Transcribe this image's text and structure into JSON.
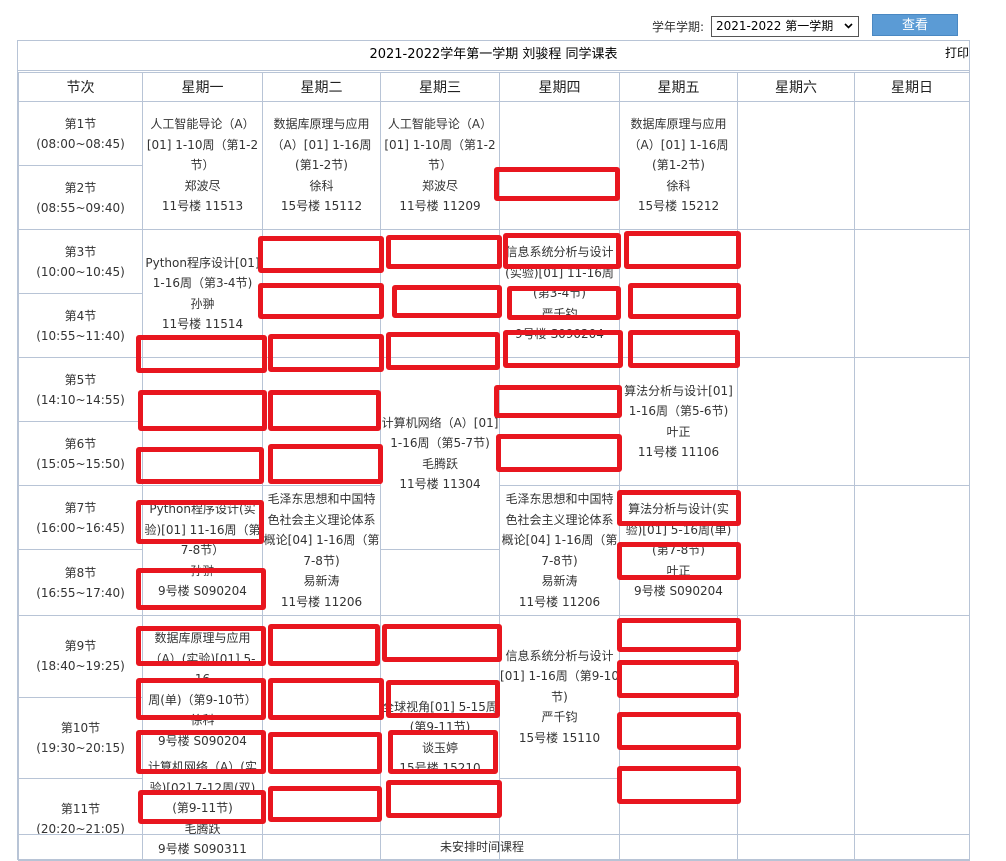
{
  "toolbar": {
    "term_label": "学年学期:",
    "term_value": "2021-2022 第一学期",
    "query_label": "查看"
  },
  "title": "2021-2022学年第一学期 刘骏程 同学课表",
  "print_label": "打印",
  "headers": [
    "节次",
    "星期一",
    "星期二",
    "星期三",
    "星期四",
    "星期五",
    "星期六",
    "星期日"
  ],
  "periods": [
    {
      "name": "第1节",
      "time": "(08:00~08:45)"
    },
    {
      "name": "第2节",
      "time": "(08:55~09:40)"
    },
    {
      "name": "第3节",
      "time": "(10:00~10:45)"
    },
    {
      "name": "第4节",
      "time": "(10:55~11:40)"
    },
    {
      "name": "第5节",
      "time": "(14:10~14:55)"
    },
    {
      "name": "第6节",
      "time": "(15:05~15:50)"
    },
    {
      "name": "第7节",
      "time": "(16:00~16:45)"
    },
    {
      "name": "第8节",
      "time": "(16:55~17:40)"
    },
    {
      "name": "第9节",
      "time": "(18:40~19:25)"
    },
    {
      "name": "第10节",
      "time": "(19:30~20:15)"
    },
    {
      "name": "第11节",
      "time": "(20:20~21:05)"
    }
  ],
  "courses": {
    "mon_1": {
      "lines": [
        "人工智能导论（A）",
        "[01] 1-10周（第1-2",
        "节）",
        "郑波尽",
        "11号楼 11513"
      ]
    },
    "tue_1": {
      "lines": [
        "数据库原理与应用",
        "（A）[01] 1-16周",
        "(第1-2节)",
        "徐科",
        "15号楼 15112"
      ]
    },
    "wed_1": {
      "lines": [
        "人工智能导论（A）",
        "[01] 1-10周（第1-2",
        "节）",
        "郑波尽",
        "11号楼 11209"
      ]
    },
    "fri_1": {
      "lines": [
        "数据库原理与应用",
        "（A）[01] 1-16周",
        "(第1-2节)",
        "徐科",
        "15号楼 15212"
      ]
    },
    "mon_3": {
      "lines": [
        "Python程序设计[01]",
        "1-16周（第3-4节)",
        "孙翀",
        "11号楼 11514"
      ]
    },
    "thu_3": {
      "lines": [
        "信息系统分析与设计",
        "(实验)[01] 11-16周",
        "(第3-4节)",
        "严千钧",
        "9号楼 S090204"
      ]
    },
    "wed_5": {
      "lines": [
        "计算机网络（A）[01]",
        "1-16周（第5-7节)",
        "毛腾跃",
        "11号楼 11304"
      ]
    },
    "fri_5": {
      "lines": [
        "算法分析与设计[01]",
        "1-16周（第5-6节)",
        "叶正",
        "11号楼 11106"
      ]
    },
    "mon_7": {
      "lines": [
        "Python程序设计(实",
        "验)[01] 11-16周（第",
        "7-8节）",
        "孙翀",
        "9号楼 S090204"
      ]
    },
    "tue_7": {
      "lines": [
        "毛泽东思想和中国特",
        "色社会主义理论体系",
        "概论[04] 1-16周（第",
        "7-8节)",
        "易新涛",
        "11号楼 11206"
      ]
    },
    "thu_7": {
      "lines": [
        "毛泽东思想和中国特",
        "色社会主义理论体系",
        "概论[04] 1-16周（第",
        "7-8节)",
        "易新涛",
        "11号楼 11206"
      ]
    },
    "fri_7": {
      "lines": [
        "算法分析与设计(实",
        "验)[01] 5-16周(单)",
        "(第7-8节)",
        "叶正",
        "9号楼 S090204"
      ]
    },
    "mon_9": {
      "lines": [
        "数据库原理与应用",
        "（A）(实验)[01] 5-16",
        "周(单)（第9-10节）",
        "徐科",
        "9号楼 S090204"
      ]
    },
    "thu_9": {
      "lines": [
        "信息系统分析与设计",
        "[01] 1-16周（第9-10",
        "节)",
        "严千钧",
        "15号楼 15110"
      ]
    },
    "wed_10": {
      "lines": [
        "全球视角[01] 5-15周",
        "(第9-11节)",
        "谈玉婷",
        "15号楼 15210"
      ]
    },
    "mon_10b": {
      "lines": [
        "计算机网络（A）(实",
        "验)[02] 7-12周(双)",
        "(第9-11节)",
        "毛腾跃",
        "9号楼 S090311"
      ]
    }
  },
  "footer": "未安排时间课程"
}
